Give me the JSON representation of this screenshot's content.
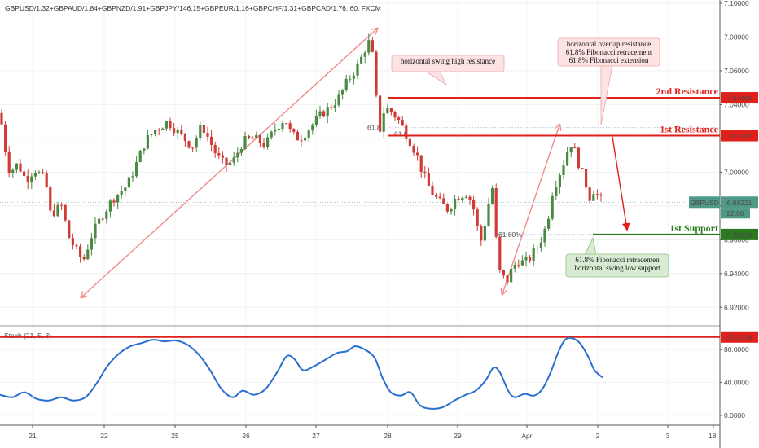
{
  "header": {
    "title": "GBPUSD/1.32+GBPAUD/1.84+GBPNZD/1.91+GBPJPY/146.15+GBPEUR/1.16+GBPCHF/1.31+GBPCAD/1.76, 60, FXCM"
  },
  "colors": {
    "up": "#4a8a42",
    "down": "#d03a37",
    "resistance": "#e0201a",
    "support": "#2b7a1f",
    "stoch": "#2a6fd0",
    "arrow": "#f08a8a"
  },
  "chart_data": {
    "type": "candlestick",
    "title": "GBPUSD/1.32+GBPAUD/1.84+GBPNZD/1.91+GBPJPY/146.15+GBPEUR/1.16+GBPCHF/1.31+GBPCAD/1.76, 60, FXCM",
    "timeframe": "60",
    "ylim": [
      6.91,
      7.1
    ],
    "y_ticks": [
      "6.92000",
      "6.94000",
      "6.96000",
      "6.98000",
      "7.00000",
      "7.02000",
      "7.04000",
      "7.06000",
      "7.08000",
      "7.10000"
    ],
    "x_ticks": [
      "21",
      "22",
      "25",
      "26",
      "27",
      "28",
      "29",
      "Apr",
      "2",
      "3",
      "18:"
    ],
    "price_path": [
      [
        0,
        7.035
      ],
      [
        6,
        7.015
      ],
      [
        12,
        7.0
      ],
      [
        22,
        7.005
      ],
      [
        32,
        6.995
      ],
      [
        42,
        7.002
      ],
      [
        56,
        6.995
      ],
      [
        62,
        6.975
      ],
      [
        76,
        6.98
      ],
      [
        84,
        6.962
      ],
      [
        92,
        6.955
      ],
      [
        102,
        6.947
      ],
      [
        112,
        6.962
      ],
      [
        126,
        6.975
      ],
      [
        140,
        6.985
      ],
      [
        156,
        6.992
      ],
      [
        166,
        7.003
      ],
      [
        178,
        7.018
      ],
      [
        190,
        7.025
      ],
      [
        206,
        7.03
      ],
      [
        222,
        7.022
      ],
      [
        236,
        7.015
      ],
      [
        248,
        7.028
      ],
      [
        256,
        7.02
      ],
      [
        266,
        7.01
      ],
      [
        276,
        7.004
      ],
      [
        286,
        7.006
      ],
      [
        298,
        7.018
      ],
      [
        312,
        7.02
      ],
      [
        326,
        7.016
      ],
      [
        338,
        7.026
      ],
      [
        350,
        7.032
      ],
      [
        358,
        7.022
      ],
      [
        368,
        7.02
      ],
      [
        380,
        7.026
      ],
      [
        392,
        7.033
      ],
      [
        404,
        7.038
      ],
      [
        416,
        7.044
      ],
      [
        428,
        7.055
      ],
      [
        438,
        7.062
      ],
      [
        446,
        7.07
      ],
      [
        452,
        7.078
      ],
      [
        458,
        7.068
      ],
      [
        462,
        7.043
      ],
      [
        467,
        7.024
      ],
      [
        472,
        7.038
      ],
      [
        480,
        7.036
      ],
      [
        488,
        7.032
      ],
      [
        496,
        7.025
      ],
      [
        504,
        7.018
      ],
      [
        512,
        7.01
      ],
      [
        520,
        6.998
      ],
      [
        530,
        6.988
      ],
      [
        540,
        6.982
      ],
      [
        550,
        6.978
      ],
      [
        560,
        6.985
      ],
      [
        572,
        6.988
      ],
      [
        580,
        6.982
      ],
      [
        590,
        6.958
      ],
      [
        598,
        6.975
      ],
      [
        604,
        6.995
      ],
      [
        608,
        6.965
      ],
      [
        614,
        6.94
      ],
      [
        622,
        6.935
      ],
      [
        628,
        6.942
      ],
      [
        636,
        6.948
      ],
      [
        644,
        6.946
      ],
      [
        652,
        6.95
      ],
      [
        660,
        6.956
      ],
      [
        666,
        6.962
      ],
      [
        672,
        6.97
      ],
      [
        678,
        6.988
      ],
      [
        686,
        6.998
      ],
      [
        694,
        7.008
      ],
      [
        700,
        7.018
      ],
      [
        706,
        7.012
      ],
      [
        714,
        7.0
      ],
      [
        720,
        6.992
      ],
      [
        724,
        6.985
      ],
      [
        728,
        6.99
      ],
      [
        734,
        6.986
      ],
      [
        740,
        6.982
      ]
    ],
    "levels": [
      {
        "label": "2nd Resistance",
        "value": "7.04404",
        "price": 7.04404,
        "color": "#e0201a"
      },
      {
        "label": "1st Resistance",
        "value": "7.02162",
        "price": 7.02162,
        "color": "#e0201a"
      },
      {
        "label": "1st Support",
        "value": "6.96310",
        "price": 6.9631,
        "color": "#2b7a1f"
      }
    ],
    "current": {
      "label": "GBPUSD",
      "value": "6.98221",
      "price": 6.98221,
      "countdown": "22:08"
    },
    "fib_labels": [
      "61.80%",
      "61.8",
      "61.8"
    ],
    "annotations": [
      {
        "lines": [
          "horizontal swing high resistance"
        ]
      },
      {
        "lines": [
          "horizontal overlap resistance",
          "61.8% Fibonacci retracement",
          "61.8% Fibonacci extension"
        ]
      },
      {
        "lines": [
          "61.8% Fibonacci retracemen",
          "horizontal swing low support"
        ]
      }
    ],
    "stochastic": {
      "label": "Stoch (21, 5, 3)",
      "ylim": [
        -10,
        105
      ],
      "y_ticks": [
        "0.0000",
        "40.0000",
        "80.0000"
      ],
      "level": {
        "value": "95.3224",
        "price": 95.3224
      },
      "values": [
        [
          0,
          25
        ],
        [
          15,
          22
        ],
        [
          30,
          28
        ],
        [
          45,
          20
        ],
        [
          60,
          18
        ],
        [
          75,
          22
        ],
        [
          90,
          18
        ],
        [
          105,
          22
        ],
        [
          118,
          38
        ],
        [
          132,
          60
        ],
        [
          146,
          75
        ],
        [
          160,
          84
        ],
        [
          174,
          88
        ],
        [
          188,
          92
        ],
        [
          202,
          90
        ],
        [
          216,
          91
        ],
        [
          230,
          86
        ],
        [
          244,
          74
        ],
        [
          258,
          55
        ],
        [
          272,
          32
        ],
        [
          286,
          22
        ],
        [
          298,
          30
        ],
        [
          312,
          25
        ],
        [
          326,
          32
        ],
        [
          340,
          52
        ],
        [
          352,
          72
        ],
        [
          362,
          68
        ],
        [
          372,
          55
        ],
        [
          386,
          60
        ],
        [
          400,
          68
        ],
        [
          414,
          76
        ],
        [
          426,
          78
        ],
        [
          436,
          84
        ],
        [
          448,
          80
        ],
        [
          460,
          70
        ],
        [
          470,
          45
        ],
        [
          480,
          28
        ],
        [
          492,
          24
        ],
        [
          504,
          28
        ],
        [
          516,
          12
        ],
        [
          530,
          8
        ],
        [
          544,
          10
        ],
        [
          558,
          18
        ],
        [
          572,
          25
        ],
        [
          584,
          30
        ],
        [
          596,
          42
        ],
        [
          606,
          58
        ],
        [
          614,
          52
        ],
        [
          624,
          30
        ],
        [
          632,
          22
        ],
        [
          644,
          26
        ],
        [
          656,
          24
        ],
        [
          666,
          32
        ],
        [
          676,
          52
        ],
        [
          686,
          78
        ],
        [
          694,
          92
        ],
        [
          702,
          94
        ],
        [
          712,
          88
        ],
        [
          722,
          72
        ],
        [
          730,
          55
        ],
        [
          740,
          46
        ]
      ]
    }
  }
}
